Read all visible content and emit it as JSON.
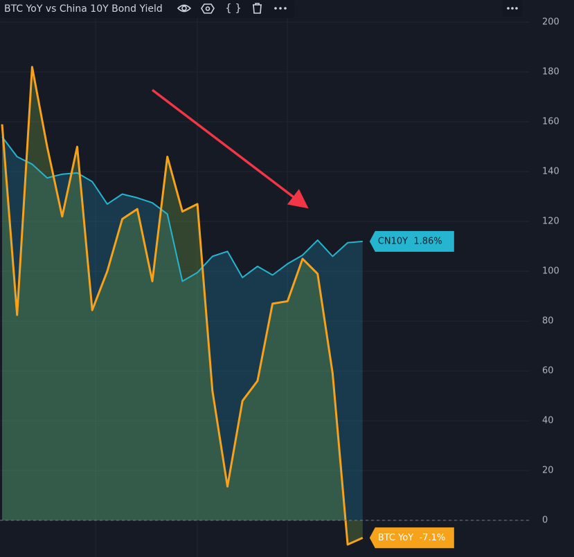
{
  "chart_data": {
    "type": "line",
    "title": "BTC YoY vs China 10Y Bond Yield",
    "ylim": [
      -14.7,
      208.9
    ],
    "yticks": [
      0,
      20,
      40,
      60,
      80,
      100,
      120,
      140,
      160,
      180,
      200
    ],
    "series": [
      {
        "name": "CN10Y",
        "color": "#26b5d0",
        "tag": "CN10Y  1.86%",
        "values": [
          154,
          146,
          143,
          137.5,
          139,
          139.5,
          136,
          127,
          131,
          129.5,
          127.5,
          123,
          96,
          99.5,
          106,
          108,
          97.5,
          102,
          98.5,
          103,
          106.5,
          112.5,
          106,
          111.5,
          112
        ]
      },
      {
        "name": "BTC YoY",
        "color": "#f7a21b",
        "tag": "BTC YoY  -7.1%",
        "values": [
          159,
          82.5,
          182,
          150,
          122,
          150,
          84.4,
          100,
          121,
          125,
          96,
          146,
          124,
          127,
          52,
          13.6,
          48,
          56,
          87,
          88,
          105,
          99,
          59,
          -9.7,
          -7
        ]
      }
    ]
  }
}
